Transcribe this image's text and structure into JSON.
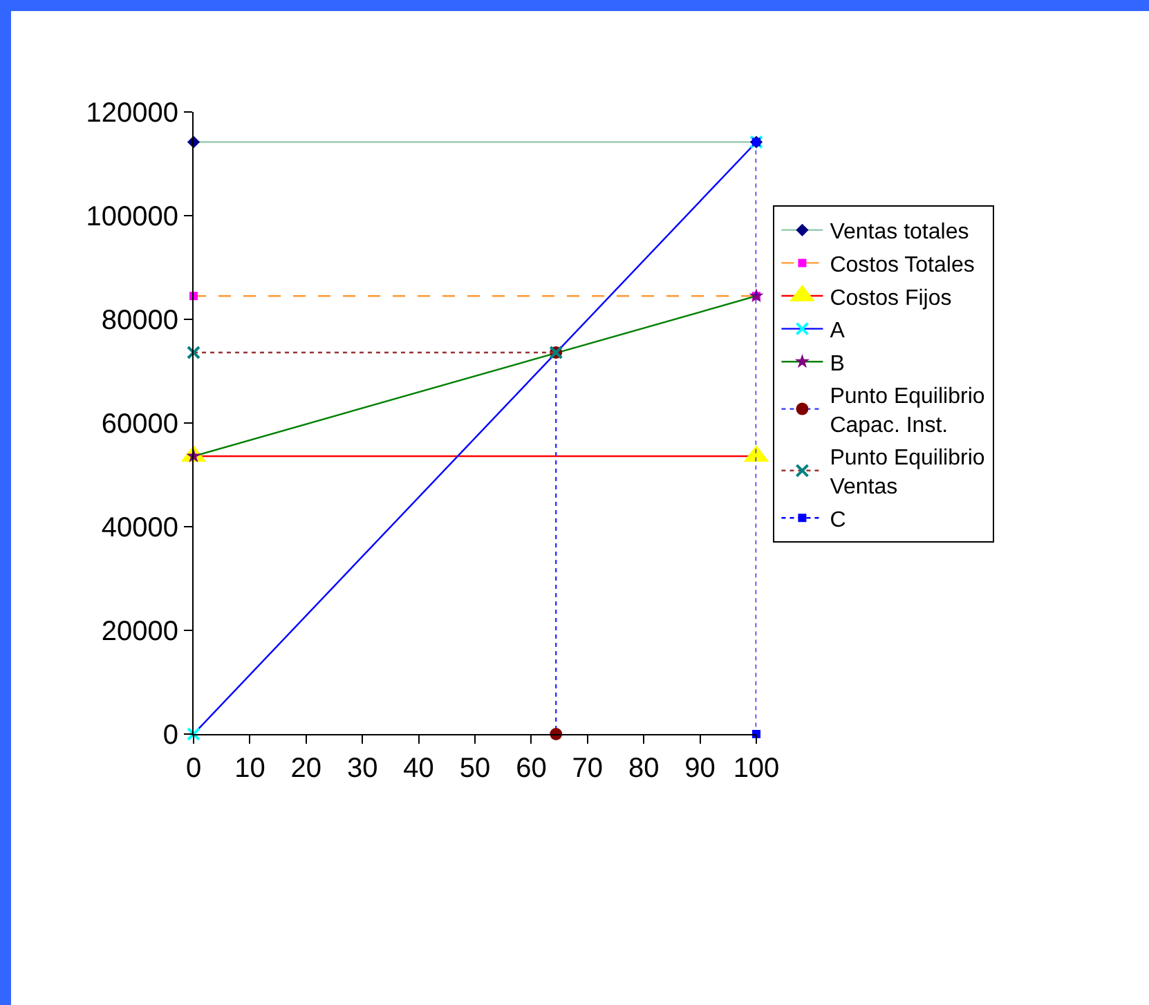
{
  "chart_data": {
    "type": "line",
    "xlim": [
      0,
      100
    ],
    "xticks": [
      0,
      10,
      20,
      30,
      40,
      50,
      60,
      70,
      80,
      90,
      100
    ],
    "ylim": [
      0,
      120000
    ],
    "yticks": [
      0,
      20000,
      40000,
      60000,
      80000,
      100000,
      120000
    ],
    "grid": false,
    "legend": "right",
    "series": [
      {
        "name": "Ventas totales",
        "color": "#99ccb3",
        "marker": "diamond",
        "colors": [
          "#000080",
          "#000080"
        ],
        "line_style": "solid",
        "x": [
          0,
          100
        ],
        "values": [
          114200,
          114200
        ]
      },
      {
        "name": "Costos Totales",
        "color": "#ff9933",
        "marker": "square",
        "colors": [
          "#ff00ff",
          "#ff00ff"
        ],
        "line_style": "dashed",
        "x": [
          0,
          100
        ],
        "values": [
          84500,
          84500
        ]
      },
      {
        "name": "Costos Fijos",
        "color": "#ff0000",
        "marker": "triangle",
        "colors": [
          "#ffff00",
          "#ffff00"
        ],
        "line_style": "solid",
        "x": [
          0,
          100
        ],
        "values": [
          53600,
          53600
        ]
      },
      {
        "name": "A",
        "color": "#0000ff",
        "marker": "cross",
        "colors": [
          "#00ffff",
          "#00ffff"
        ],
        "line_style": "solid",
        "x": [
          0,
          100
        ],
        "values": [
          0,
          114200
        ]
      },
      {
        "name": "B",
        "color": "#008000",
        "marker": "star",
        "colors": [
          "#800080",
          "#800080"
        ],
        "line_style": "solid",
        "x": [
          0,
          100
        ],
        "values": [
          53600,
          84500
        ]
      },
      {
        "name": "Punto Equilibrio\nCapac. Inst.",
        "color": "#3333ff",
        "marker": "circle",
        "colors": [
          "#800000",
          "#800000"
        ],
        "line_style": "dotted",
        "x": [
          64.4,
          64.4
        ],
        "values": [
          73600,
          0
        ]
      },
      {
        "name": "Punto Equilibrio\nVentas",
        "color": "#993333",
        "marker": "cross",
        "colors": [
          "#008080",
          "#008080"
        ],
        "line_style": "dotted",
        "x": [
          0,
          64.4
        ],
        "values": [
          73600,
          73600
        ]
      },
      {
        "name": "C",
        "color": "#0000ff",
        "marker": "square",
        "colors": [
          "#0000ff",
          "#0000ff"
        ],
        "line_style": "dotted",
        "x": [
          100,
          100
        ],
        "values": [
          114200,
          0
        ]
      }
    ]
  }
}
